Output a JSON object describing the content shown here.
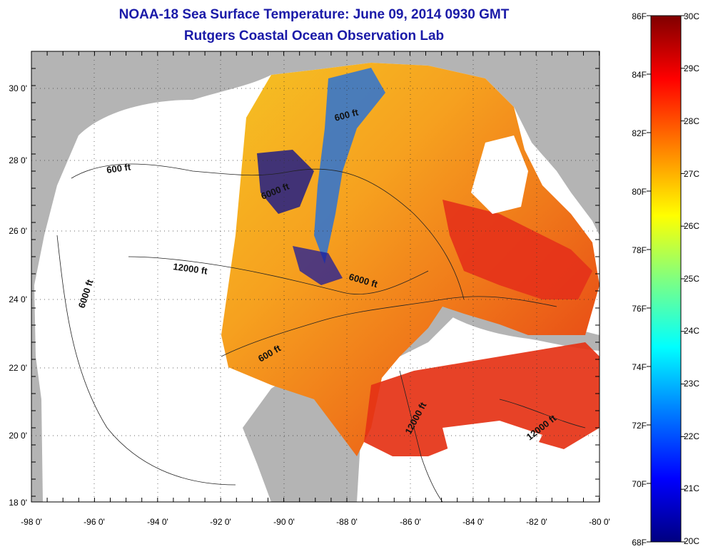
{
  "title": "NOAA-18 Sea Surface Temperature:  June 09, 2014 0930 GMT",
  "subtitle": "Rutgers Coastal Ocean Observation Lab",
  "map": {
    "lon_ticks": [
      "-98 0'",
      "-96 0'",
      "-94 0'",
      "-92 0'",
      "-90 0'",
      "-88 0'",
      "-86 0'",
      "-84 0'",
      "-82 0'",
      "-80 0'"
    ],
    "lat_ticks": [
      "30 0'",
      "28 0'",
      "26 0'",
      "24 0'",
      "22 0'",
      "20 0'",
      "18 0'"
    ],
    "contour_labels": [
      "600 ft",
      "6000 ft",
      "12000 ft",
      "6000 ft",
      "600 ft",
      "6000 ft",
      "600 ft",
      "12000 ft",
      "12000 ft"
    ]
  },
  "colorbar": {
    "fahrenheit_labels": [
      "86F",
      "84F",
      "82F",
      "80F",
      "78F",
      "76F",
      "74F",
      "72F",
      "70F",
      "68F"
    ],
    "celsius_labels": [
      "30C",
      "29C",
      "28C",
      "27C",
      "26C",
      "25C",
      "24C",
      "23C",
      "22C",
      "21C",
      "20C"
    ],
    "gradient_colors": [
      "#000080",
      "#0000ff",
      "#0080ff",
      "#00ffff",
      "#80ff80",
      "#ffff00",
      "#ff8000",
      "#ff0000",
      "#800000"
    ]
  }
}
